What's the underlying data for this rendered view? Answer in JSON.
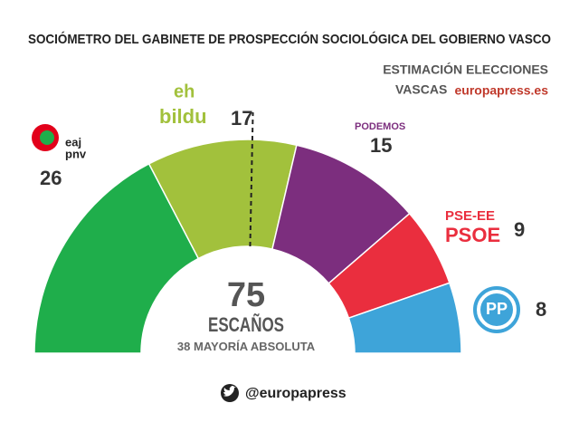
{
  "chart_data": {
    "type": "parliament",
    "title": "SOCIÓMETRO DEL GABINETE DE PROSPECCIÓN SOCIOLÓGICA DEL GOBIERNO VASCO",
    "subtitle_lines": [
      "ESTIMACIÓN ELECCIONES",
      "VASCAS"
    ],
    "source": "europapress.es",
    "series": [
      {
        "name": "eaj pnv",
        "label_lines": [
          "eaj",
          "pnv"
        ],
        "color": "#1fae4b",
        "values": [
          26
        ]
      },
      {
        "name": "eh bildu",
        "label_lines": [
          "eh",
          "bildu"
        ],
        "color": "#a2c13c",
        "values": [
          17
        ]
      },
      {
        "name": "PODEMOS",
        "label_lines": [
          "PODEMOS"
        ],
        "color": "#7c2e7e",
        "values": [
          15
        ]
      },
      {
        "name": "PSE-EE PSOE",
        "label_lines": [
          "PSE-EE",
          "PSOE"
        ],
        "color": "#ea2e3e",
        "values": [
          9
        ]
      },
      {
        "name": "PP",
        "label_lines": [
          "PP"
        ],
        "color": "#3ea4d9",
        "values": [
          8
        ]
      }
    ],
    "total": 75,
    "total_label": "ESCAÑOS",
    "majority": 38,
    "majority_label": "MAYORÍA ABSOLUTA",
    "handle": "@europapress"
  }
}
